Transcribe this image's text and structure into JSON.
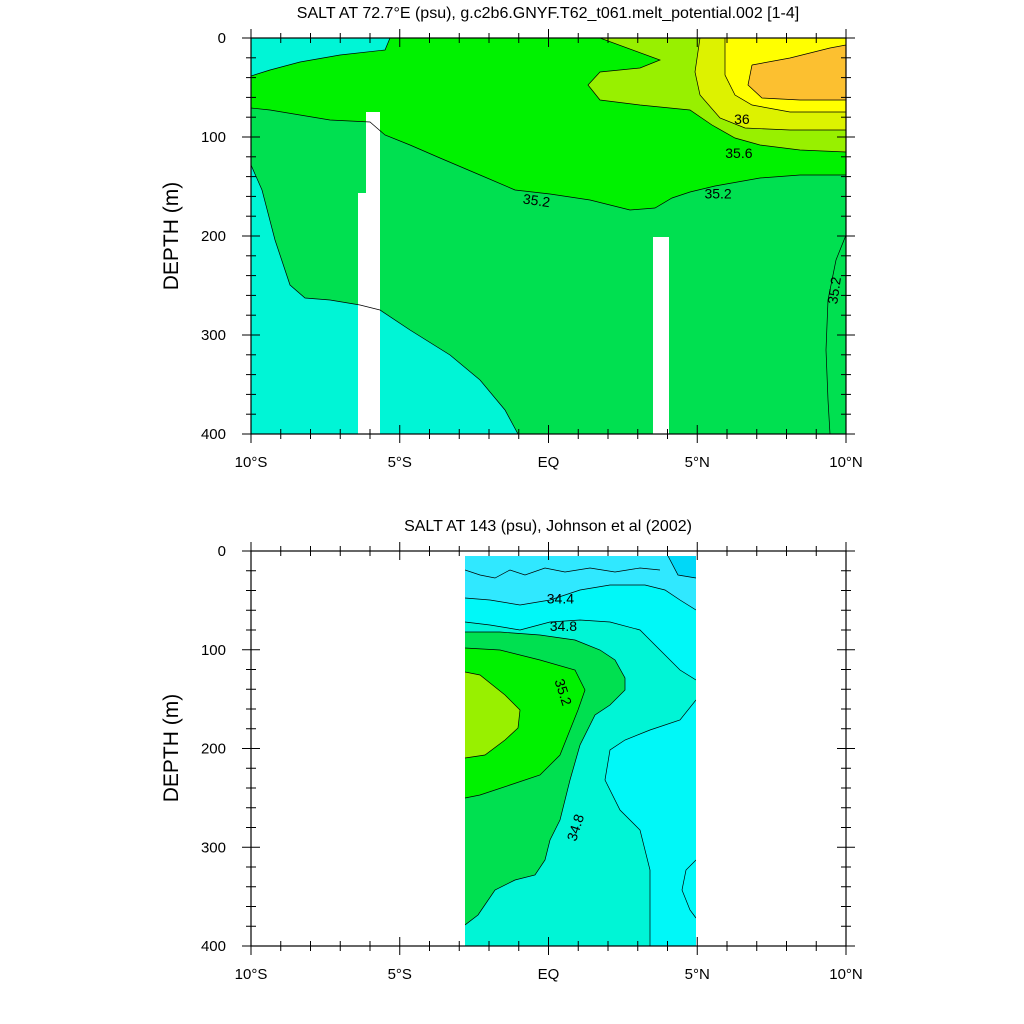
{
  "chart_data": [
    {
      "type": "contour",
      "title": "SALT AT  72.7°E (psu), g.c2b6.GNYF.T62_t061.melt_potential.002 [1-4]",
      "ylabel": "DEPTH (m)",
      "xlabel": "",
      "x_ticks": [
        {
          "value": -10,
          "label": "10°S"
        },
        {
          "value": -5,
          "label": "5°S"
        },
        {
          "value": 0,
          "label": "EQ"
        },
        {
          "value": 5,
          "label": "5°N"
        },
        {
          "value": 10,
          "label": "10°N"
        }
      ],
      "y_ticks": [
        {
          "value": 0,
          "label": "0"
        },
        {
          "value": 100,
          "label": "100"
        },
        {
          "value": 200,
          "label": "200"
        },
        {
          "value": 300,
          "label": "300"
        },
        {
          "value": 400,
          "label": "400"
        }
      ],
      "xlim": [
        -10,
        10
      ],
      "ylim": [
        0,
        400
      ],
      "y_inverted": true,
      "contour_interval": 0.2,
      "contour_labels": [
        {
          "text": "36",
          "x": 6.5,
          "y": 82,
          "angle": 0
        },
        {
          "text": "35.6",
          "x": 6.4,
          "y": 116,
          "angle": 0
        },
        {
          "text": "35.2",
          "x": -0.4,
          "y": 164,
          "angle": 8
        },
        {
          "text": "35.2",
          "x": 5.7,
          "y": 157,
          "angle": 0
        },
        {
          "text": "35.2",
          "x": 9.6,
          "y": 255,
          "angle": -82
        }
      ],
      "fill_colors": {
        "34.8-35.0": "#00f5d6",
        "35.0-35.2": "#00e050",
        "35.2-35.4": "#00f200",
        "35.4-35.6": "#98f000",
        "35.6-35.8": "#ddf200",
        "35.8-36.0": "#ffff00",
        "36.0-36.2": "#fcc030"
      }
    },
    {
      "type": "contour",
      "title": "SALT AT 143 (psu), Johnson et al (2002)",
      "ylabel": "DEPTH (m)",
      "xlabel": "",
      "x_ticks": [
        {
          "value": -10,
          "label": "10°S"
        },
        {
          "value": -5,
          "label": "5°S"
        },
        {
          "value": 0,
          "label": "EQ"
        },
        {
          "value": 5,
          "label": "5°N"
        },
        {
          "value": 10,
          "label": "10°N"
        }
      ],
      "y_ticks": [
        {
          "value": 0,
          "label": "0"
        },
        {
          "value": 100,
          "label": "100"
        },
        {
          "value": 200,
          "label": "200"
        },
        {
          "value": 300,
          "label": "300"
        },
        {
          "value": 400,
          "label": "400"
        }
      ],
      "xlim": [
        -10,
        10
      ],
      "ylim": [
        0,
        400
      ],
      "y_inverted": true,
      "data_extent": {
        "x": [
          -2.8,
          5
        ],
        "y": [
          5,
          400
        ]
      },
      "contour_interval": 0.2,
      "contour_labels": [
        {
          "text": "34.4",
          "x": 0.4,
          "y": 48,
          "angle": 0
        },
        {
          "text": "34.8",
          "x": 0.5,
          "y": 76,
          "angle": 0
        },
        {
          "text": "35.2",
          "x": 0.5,
          "y": 143,
          "angle": 72
        },
        {
          "text": "34.8",
          "x": 0.9,
          "y": 280,
          "angle": -72
        }
      ],
      "fill_colors": {
        "34.2-34.4": "#00d8f8",
        "34.4-34.6": "#30e8ff",
        "34.6-34.8": "#00f8f8",
        "34.8-35.0": "#00f5d6",
        "35.0-35.2": "#00e050",
        "35.2-35.4": "#00f200",
        "35.4-35.6": "#98f000"
      }
    }
  ]
}
